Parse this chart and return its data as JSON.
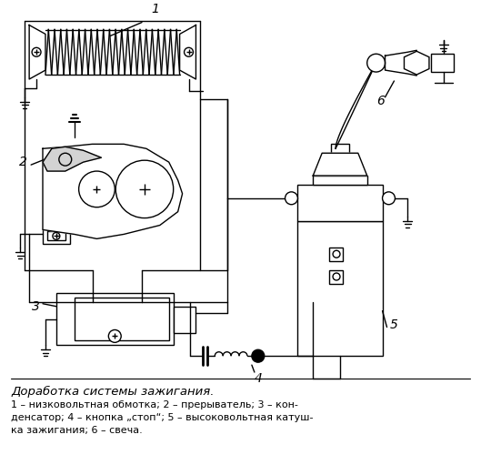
{
  "title": "Доработка системы зажигания.",
  "caption_lines": [
    "1 – низковольтная обмотка; 2 – прерыватель; 3 – кон-",
    "денсатор; 4 – кнопка „стоп“; 5 – высоковольтная катуш-",
    "ка зажигания; 6 – свеча."
  ],
  "bg_color": "#ffffff",
  "line_color": "#000000",
  "fig_width": 5.29,
  "fig_height": 5.22,
  "dpi": 100
}
